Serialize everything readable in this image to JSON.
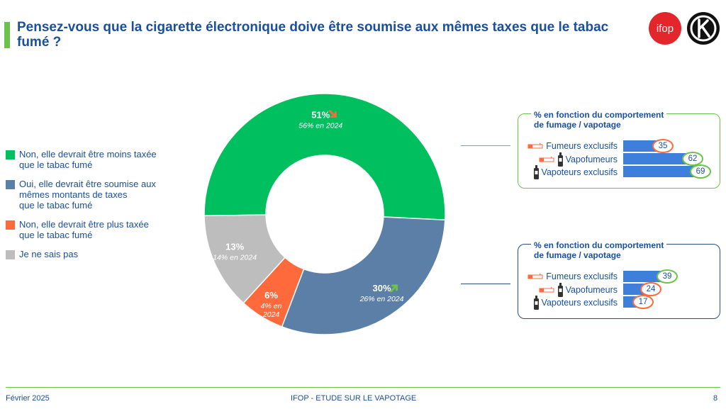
{
  "header": {
    "title": "Pensez-vous que la cigarette électronique doive être soumise aux mêmes taxes que le tabac fumé ?",
    "logo_text": "ifop"
  },
  "colors": {
    "green": "#00bf5f",
    "blue_grey": "#5b7fa6",
    "orange": "#ff6a3d",
    "grey": "#bdbdbd",
    "accent_green": "#6cc24a",
    "bar_blue": "#3f7fdc",
    "title_blue": "#1a4f9c"
  },
  "legend": [
    {
      "label": "Non, elle devrait être moins taxée\nque le tabac fumé",
      "color": "#00bf5f"
    },
    {
      "label": "Oui, elle devrait être soumise aux\nmêmes montants de taxes\nque le tabac fumé",
      "color": "#5b7fa6"
    },
    {
      "label": "Non, elle devrait être plus taxée\nque le tabac fumé",
      "color": "#ff6a3d"
    },
    {
      "label": "Je ne sais pas",
      "color": "#bdbdbd"
    }
  ],
  "chart_data": [
    {
      "type": "pie",
      "donut": true,
      "slices": [
        {
          "label": "Non, elle devrait être moins taxée que le tabac fumé",
          "value": 51,
          "value_label": "51%",
          "previous": "56% en 2024",
          "trend": "down",
          "color": "#00bf5f"
        },
        {
          "label": "Oui, elle devrait être soumise aux mêmes montants de taxes que le tabac fumé",
          "value": 30,
          "value_label": "30%",
          "previous": "26% en 2024",
          "trend": "up",
          "color": "#5b7fa6"
        },
        {
          "label": "Non, elle devrait être plus taxée que le tabac fumé",
          "value": 6,
          "value_label": "6%",
          "previous": "4% en 2024",
          "trend": "",
          "color": "#ff6a3d"
        },
        {
          "label": "Je ne sais pas",
          "value": 13,
          "value_label": "13%",
          "previous": "14% en 2024",
          "trend": "",
          "color": "#bdbdbd"
        }
      ]
    },
    {
      "type": "bar",
      "title": "% en fonction du comportement\nde fumage / vapotage",
      "categories": [
        "Fumeurs exclusifs",
        "Vapofumeurs",
        "Vapoteurs exclusifs"
      ],
      "values": [
        35,
        62,
        69
      ],
      "highlight": [
        "low",
        "high",
        "high"
      ],
      "xlim": [
        0,
        69
      ]
    },
    {
      "type": "bar",
      "title": "% en fonction du comportement\nde fumage / vapotage",
      "categories": [
        "Fumeurs exclusifs",
        "Vapofumeurs",
        "Vapoteurs exclusifs"
      ],
      "values": [
        39,
        24,
        17
      ],
      "highlight": [
        "high",
        "low",
        "low"
      ],
      "xlim": [
        0,
        69
      ]
    }
  ],
  "footer": {
    "date": "Février 2025",
    "study": "IFOP - ETUDE SUR LE VAPOTAGE",
    "page": "8"
  }
}
